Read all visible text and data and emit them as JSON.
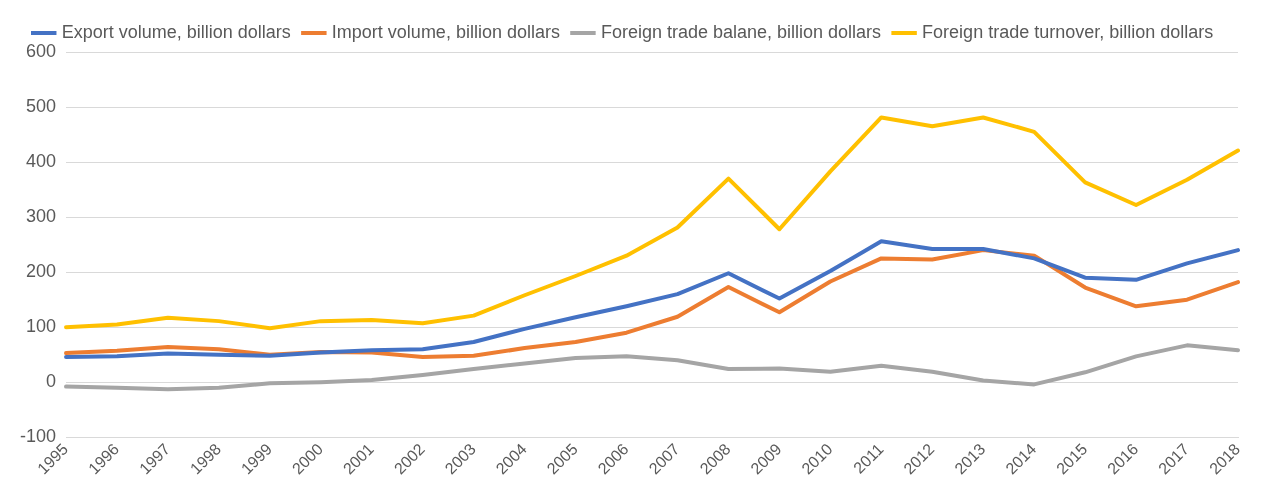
{
  "chart_data": {
    "type": "line",
    "categories": [
      "1995",
      "1996",
      "1997",
      "1998",
      "1999",
      "2000",
      "2001",
      "2002",
      "2003",
      "2004",
      "2005",
      "2006",
      "2007",
      "2008",
      "2009",
      "2010",
      "2011",
      "2012",
      "2013",
      "2014",
      "2015",
      "2016",
      "2017",
      "2018"
    ],
    "series": [
      {
        "name": "Export volume, billion dollars",
        "color": "#4472c4",
        "values": [
          46,
          47,
          52,
          50,
          48,
          54,
          58,
          60,
          73,
          97,
          118,
          138,
          160,
          198,
          152,
          202,
          256,
          242,
          242,
          225,
          190,
          186,
          216,
          240
        ]
      },
      {
        "name": "Import volume, billion dollars",
        "color": "#ed7d31",
        "values": [
          53,
          57,
          64,
          60,
          50,
          55,
          54,
          46,
          48,
          62,
          73,
          90,
          119,
          173,
          127,
          183,
          225,
          223,
          240,
          230,
          172,
          138,
          150,
          182
        ]
      },
      {
        "name": "Foreign trade balane, billion dollars",
        "color": "#a5a5a5",
        "values": [
          -8,
          -10,
          -13,
          -10,
          -2,
          0,
          4,
          13,
          24,
          34,
          44,
          47,
          40,
          24,
          25,
          19,
          30,
          19,
          3,
          -4,
          18,
          47,
          67,
          58
        ]
      },
      {
        "name": "Foreign trade turnover, billion dollars",
        "color": "#ffc000",
        "values": [
          100,
          105,
          117,
          111,
          98,
          111,
          113,
          107,
          121,
          158,
          193,
          230,
          281,
          370,
          278,
          383,
          481,
          465,
          481,
          455,
          363,
          322,
          368,
          421
        ]
      }
    ],
    "ylim": [
      -100,
      600
    ],
    "yticks": [
      -100,
      0,
      100,
      200,
      300,
      400,
      500,
      600
    ],
    "grid": "y",
    "legend": "top",
    "marker": "none",
    "line_style": "solid"
  }
}
